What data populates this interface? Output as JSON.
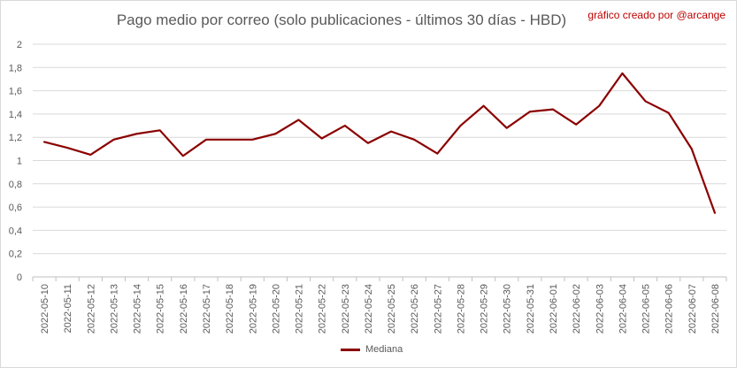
{
  "chart_data": {
    "type": "line",
    "title": "Pago medio por correo (solo publicaciones - últimos 30 días - HBD)",
    "annotation": "gráfico creado por @arcange",
    "categories": [
      "2022-05-10",
      "2022-05-11",
      "2022-05-12",
      "2022-05-13",
      "2022-05-14",
      "2022-05-15",
      "2022-05-16",
      "2022-05-17",
      "2022-05-18",
      "2022-05-19",
      "2022-05-20",
      "2022-05-21",
      "2022-05-22",
      "2022-05-23",
      "2022-05-24",
      "2022-05-25",
      "2022-05-26",
      "2022-05-27",
      "2022-05-28",
      "2022-05-29",
      "2022-05-30",
      "2022-05-31",
      "2022-06-01",
      "2022-06-02",
      "2022-06-03",
      "2022-06-04",
      "2022-06-05",
      "2022-06-06",
      "2022-06-07",
      "2022-06-08"
    ],
    "series": [
      {
        "name": "Mediana",
        "color": "#8b0000",
        "values": [
          1.16,
          1.11,
          1.05,
          1.18,
          1.23,
          1.26,
          1.04,
          1.18,
          1.18,
          1.18,
          1.23,
          1.35,
          1.19,
          1.3,
          1.15,
          1.25,
          1.18,
          1.06,
          1.3,
          1.47,
          1.28,
          1.42,
          1.44,
          1.31,
          1.47,
          1.75,
          1.51,
          1.41,
          1.1,
          0.55
        ]
      }
    ],
    "yticks": [
      "0",
      "0,2",
      "0,4",
      "0,6",
      "0,8",
      "1",
      "1,2",
      "1,4",
      "1,6",
      "1,8",
      "2"
    ],
    "ylim": [
      0,
      2
    ],
    "grid": true,
    "legend": "bottom"
  }
}
